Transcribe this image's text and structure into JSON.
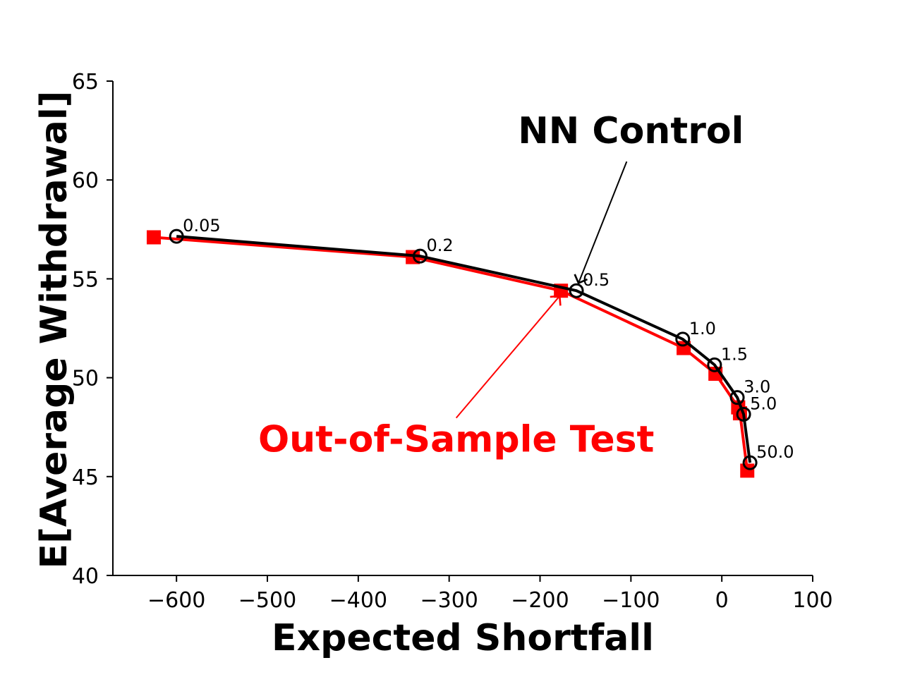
{
  "chart_data": {
    "type": "line",
    "xlabel": "Expected Shortfall",
    "ylabel": "E[Average Withdrawal]",
    "xlim": [
      -670,
      100
    ],
    "ylim": [
      40,
      65
    ],
    "xticks": [
      -600,
      -500,
      -400,
      -300,
      -200,
      -100,
      0,
      100
    ],
    "yticks": [
      40,
      45,
      50,
      55,
      60,
      65
    ],
    "xtick_labels": [
      "−600",
      "−500",
      "−400",
      "−300",
      "−200",
      "−100",
      "0",
      "100"
    ],
    "ytick_labels": [
      "40",
      "45",
      "50",
      "55",
      "60",
      "65"
    ],
    "grid": false,
    "series": [
      {
        "color": "#ff0000",
        "marker": "square",
        "x": [
          -625,
          -340,
          -177,
          -42,
          -7,
          18,
          20,
          28
        ],
        "y": [
          57.1,
          56.1,
          54.4,
          51.5,
          50.2,
          48.5,
          48.2,
          45.3
        ]
      },
      {
        "color": "#000000",
        "marker": "open-circle",
        "x": [
          -600,
          -332,
          -160,
          -43,
          -8,
          17,
          24,
          31
        ],
        "y": [
          57.15,
          56.15,
          54.4,
          51.95,
          50.65,
          49.0,
          48.15,
          45.7
        ],
        "point_labels": [
          "0.05",
          "0.2",
          "0.5",
          "1.0",
          "1.5",
          "3.0",
          "5.0",
          "50.0"
        ]
      }
    ],
    "annotations": [
      {
        "text": "NN Control",
        "color": "#000000",
        "text_x": -100,
        "text_y": 62.5,
        "arrow_to_x": -160,
        "arrow_to_y": 54.5
      },
      {
        "text": "Out-of-Sample Test",
        "color": "#ff0000",
        "text_x": -300,
        "text_y": 48.5,
        "arrow_to_x": -180,
        "arrow_to_y": 54.2
      }
    ]
  }
}
